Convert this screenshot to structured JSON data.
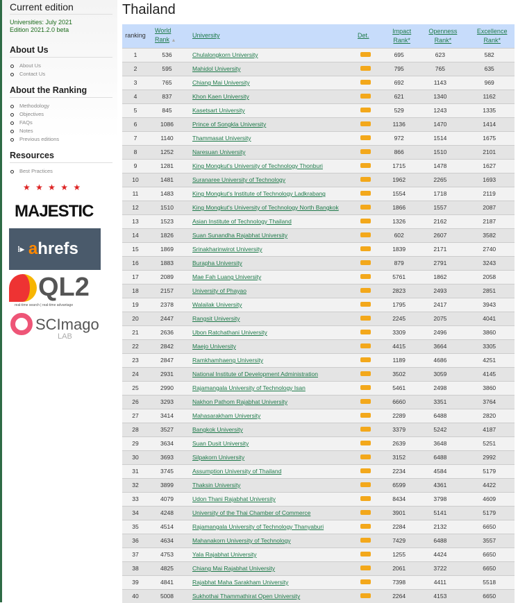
{
  "sidebar": {
    "current_edition": "Current edition",
    "edition_lines": [
      "Universities: July 2021",
      "Edition 2021.2.0 beta"
    ],
    "sections": [
      {
        "title": "About Us",
        "items": [
          "About Us",
          "Contact Us"
        ]
      },
      {
        "title": "About the Ranking",
        "items": [
          "Methodology",
          "Objectives",
          "FAQs",
          "Notes",
          "Previous editions"
        ]
      },
      {
        "title": "Resources",
        "items": [
          "Best Practices"
        ]
      }
    ],
    "logos": {
      "majestic": "MAJESTIC",
      "ahrefs_a": "a",
      "ahrefs_rest": "hrefs",
      "ql2": "QL2",
      "ql2_tag": "real-time search | real-time advantage",
      "scimago": "SCImago",
      "scimago_lab": "LAB"
    }
  },
  "main": {
    "title": "Thailand",
    "headers": {
      "ranking": "ranking",
      "world_rank_1": "World",
      "world_rank_2": "Rank",
      "university": "University",
      "det": "Det.",
      "impact_1": "Impact",
      "impact_2": "Rank*",
      "openness_1": "Openness",
      "openness_2": "Rank*",
      "excellence_1": "Excellence",
      "excellence_2": "Rank*"
    },
    "colors": {
      "header_bg": "#c7dcfb",
      "link": "#1e7a4a",
      "det_button": "#f3a81b"
    },
    "rows": [
      [
        1,
        536,
        "Chulalongkorn University",
        695,
        623,
        582
      ],
      [
        2,
        595,
        "Mahidol University",
        795,
        765,
        635
      ],
      [
        3,
        765,
        "Chiang Mai University",
        692,
        1143,
        969
      ],
      [
        4,
        837,
        "Khon Kaen University",
        621,
        1340,
        1162
      ],
      [
        5,
        845,
        "Kasetsart University",
        529,
        1243,
        1335
      ],
      [
        6,
        1086,
        "Prince of Songkla University",
        1136,
        1470,
        1414
      ],
      [
        7,
        1140,
        "Thammasat University",
        972,
        1514,
        1675
      ],
      [
        8,
        1252,
        "Naresuan University",
        866,
        1510,
        2101
      ],
      [
        9,
        1281,
        "King Mongkut's University of Technology Thonburi",
        1715,
        1478,
        1627
      ],
      [
        10,
        1481,
        "Suranaree University of Technology",
        1962,
        2265,
        1693
      ],
      [
        11,
        1483,
        "King Mongkut's Institute of Technology Ladkrabang",
        1554,
        1718,
        2119
      ],
      [
        12,
        1510,
        "King Mongkut's University of Technology North Bangkok",
        1866,
        1557,
        2087
      ],
      [
        13,
        1523,
        "Asian Institute of Technology Thailand",
        1326,
        2162,
        2187
      ],
      [
        14,
        1826,
        "Suan Sunandha Rajabhat University",
        602,
        2607,
        3582
      ],
      [
        15,
        1869,
        "Srinakharinwirot University",
        1839,
        2171,
        2740
      ],
      [
        16,
        1883,
        "Burapha University",
        879,
        2791,
        3243
      ],
      [
        17,
        2089,
        "Mae Fah Luang University",
        5761,
        1862,
        2058
      ],
      [
        18,
        2157,
        "University of Phayao",
        2823,
        2493,
        2851
      ],
      [
        19,
        2378,
        "Walailak University",
        1795,
        2417,
        3943
      ],
      [
        20,
        2447,
        "Rangsit University",
        2245,
        2075,
        4041
      ],
      [
        21,
        2636,
        "Ubon Ratchathani University",
        3309,
        2496,
        3860
      ],
      [
        22,
        2842,
        "Maejo University",
        4415,
        3664,
        3305
      ],
      [
        23,
        2847,
        "Ramkhamhaeng University",
        1189,
        4686,
        4251
      ],
      [
        24,
        2931,
        "National Institute of Development Administration",
        3502,
        3059,
        4145
      ],
      [
        25,
        2990,
        "Rajamangala University of Technology Isan",
        5461,
        2498,
        3860
      ],
      [
        26,
        3293,
        "Nakhon Pathom Rajabhat University",
        6660,
        3351,
        3764
      ],
      [
        27,
        3414,
        "Mahasarakham University",
        2289,
        6488,
        2820
      ],
      [
        28,
        3527,
        "Bangkok University",
        3379,
        5242,
        4187
      ],
      [
        29,
        3634,
        "Suan Dusit University",
        2639,
        3648,
        5251
      ],
      [
        30,
        3693,
        "Silpakorn University",
        3152,
        6488,
        2992
      ],
      [
        31,
        3745,
        "Assumption University of Thailand",
        2234,
        4584,
        5179
      ],
      [
        32,
        3899,
        "Thaksin University",
        6599,
        4361,
        4422
      ],
      [
        33,
        4079,
        "Udon Thani Rajabhat University",
        8434,
        3798,
        4609
      ],
      [
        34,
        4248,
        "University of the Thai Chamber of Commerce",
        3901,
        5141,
        5179
      ],
      [
        35,
        4514,
        "Rajamangala University of Technology Thanyaburi",
        2284,
        2132,
        6650
      ],
      [
        36,
        4634,
        "Mahanakorn University of Technology",
        7429,
        6488,
        3557
      ],
      [
        37,
        4753,
        "Yala Rajabhat University",
        1255,
        4424,
        6650
      ],
      [
        38,
        4825,
        "Chiang Mai Rajabhat University",
        2061,
        3722,
        6650
      ],
      [
        39,
        4841,
        "Rajabhat Maha Sarakham University",
        7398,
        4411,
        5518
      ],
      [
        40,
        5008,
        "Sukhothai Thammathirat Open University",
        2264,
        4153,
        6650
      ]
    ]
  }
}
